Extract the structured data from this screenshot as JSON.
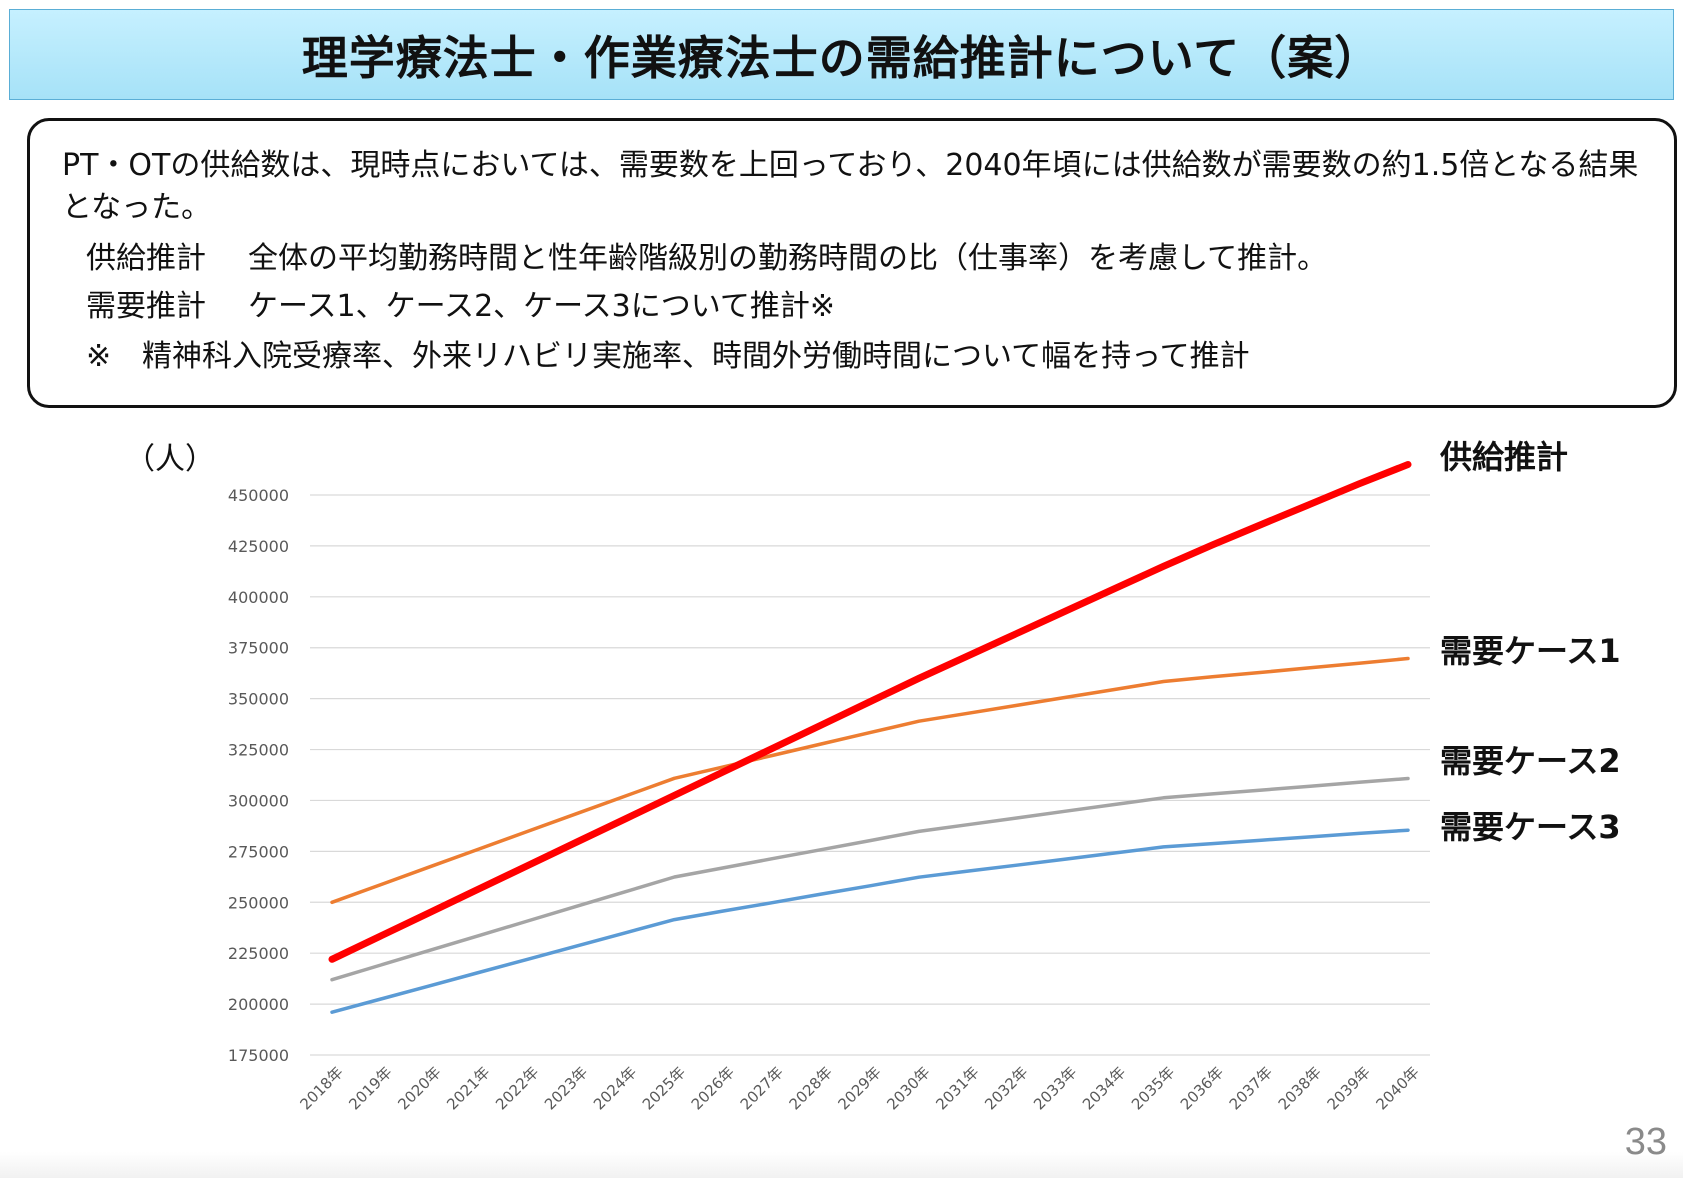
{
  "slide": {
    "title": "理学療法士・作業療法士の需給推計について（案）",
    "page_number": "33"
  },
  "summary": {
    "lead": "PT・OTの供給数は、現時点においては、需要数を上回っており、2040年頃には供給数が需要数の約1.5倍となる結果となった。",
    "rows": [
      {
        "term": "供給推計",
        "text": "全体の平均勤務時間と性年齢階級別の勤務時間の比（仕事率）を考慮して推計。"
      },
      {
        "term": "需要推計",
        "text": "ケース1、ケース2、ケース3について推計※"
      }
    ],
    "note": {
      "mark": "※",
      "text": "精神科入院受療率、外来リハビリ実施率、時間外労働時間について幅を持って推計"
    }
  },
  "chart_data": {
    "type": "line",
    "ylabel": "（人）",
    "ylim": [
      175000,
      450000
    ],
    "yticks": [
      175000,
      200000,
      225000,
      250000,
      275000,
      300000,
      325000,
      350000,
      375000,
      400000,
      425000,
      450000
    ],
    "grid": true,
    "legend": "right-end labels",
    "categories": [
      "2018年",
      "2019年",
      "2020年",
      "2021年",
      "2022年",
      "2023年",
      "2024年",
      "2025年",
      "2026年",
      "2027年",
      "2028年",
      "2029年",
      "2030年",
      "2031年",
      "2032年",
      "2033年",
      "2034年",
      "2035年",
      "2036年",
      "2037年",
      "2038年",
      "2039年",
      "2040年"
    ],
    "series": [
      {
        "name": "供給推計",
        "color": "#ff0000",
        "values": [
          222000,
          233500,
          245000,
          256500,
          268000,
          279500,
          291000,
          302500,
          314000,
          325500,
          337000,
          348500,
          360000,
          371000,
          382000,
          393000,
          404000,
          415000,
          425500,
          435500,
          445500,
          455500,
          465000
        ]
      },
      {
        "name": "需要ケース1",
        "color": "#ed7d31",
        "values": [
          250000,
          258700,
          267400,
          276100,
          284800,
          293500,
          302200,
          310900,
          316500,
          322100,
          327700,
          333300,
          338900,
          342800,
          346700,
          350600,
          354500,
          358400,
          360700,
          362900,
          365200,
          367400,
          369700
        ]
      },
      {
        "name": "需要ケース2",
        "color": "#a5a5a5",
        "values": [
          212000,
          219200,
          226400,
          233600,
          240800,
          248000,
          255200,
          262400,
          266900,
          271400,
          275800,
          280300,
          284800,
          288100,
          291400,
          294700,
          298000,
          301300,
          303200,
          305100,
          307000,
          308900,
          310800
        ]
      },
      {
        "name": "需要ケース3",
        "color": "#5b9bd5",
        "values": [
          196000,
          202500,
          209000,
          215500,
          222000,
          228500,
          235000,
          241500,
          245700,
          249800,
          254000,
          258100,
          262300,
          265300,
          268200,
          271200,
          274200,
          277200,
          278800,
          280500,
          282100,
          283800,
          285400
        ]
      }
    ]
  }
}
